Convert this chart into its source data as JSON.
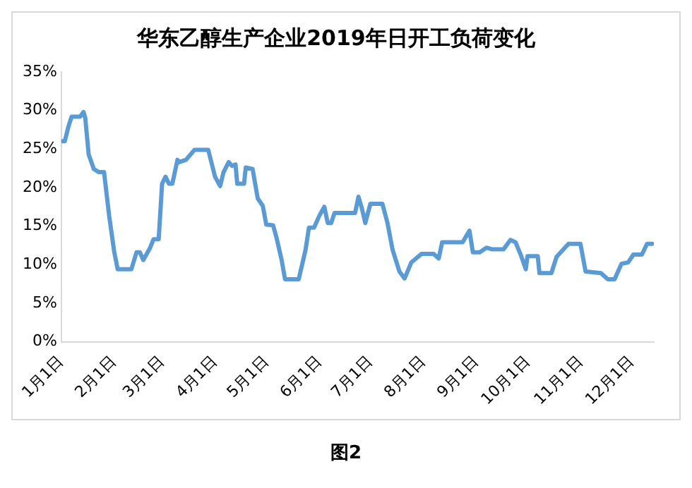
{
  "chart_data": {
    "type": "line",
    "title": "华东乙醇生产企业2019年日开工负荷变化",
    "annotations": [
      "图2"
    ],
    "x": [
      "2019-01-01",
      "2019-01-03",
      "2019-01-05",
      "2019-01-07",
      "2019-01-12",
      "2019-01-14",
      "2019-01-15",
      "2019-01-17",
      "2019-01-20",
      "2019-01-23",
      "2019-01-26",
      "2019-01-29",
      "2019-02-01",
      "2019-02-03",
      "2019-02-11",
      "2019-02-14",
      "2019-02-16",
      "2019-02-18",
      "2019-02-22",
      "2019-02-24",
      "2019-02-27",
      "2019-03-01",
      "2019-03-03",
      "2019-03-05",
      "2019-03-07",
      "2019-03-10",
      "2019-03-11",
      "2019-03-15",
      "2019-03-20",
      "2019-03-28",
      "2019-04-01",
      "2019-04-04",
      "2019-04-06",
      "2019-04-09",
      "2019-04-11",
      "2019-04-13",
      "2019-04-14",
      "2019-04-18",
      "2019-04-19",
      "2019-04-23",
      "2019-04-26",
      "2019-04-29",
      "2019-05-01",
      "2019-05-05",
      "2019-05-07",
      "2019-05-10",
      "2019-05-12",
      "2019-05-20",
      "2019-05-24",
      "2019-05-26",
      "2019-05-29",
      "2019-06-01",
      "2019-06-04",
      "2019-06-06",
      "2019-06-08",
      "2019-06-10",
      "2019-06-22",
      "2019-06-24",
      "2019-06-26",
      "2019-06-28",
      "2019-07-01",
      "2019-07-08",
      "2019-07-11",
      "2019-07-14",
      "2019-07-18",
      "2019-07-21",
      "2019-07-25",
      "2019-07-31",
      "2019-08-07",
      "2019-08-10",
      "2019-08-12",
      "2019-08-24",
      "2019-08-28",
      "2019-08-30",
      "2019-09-03",
      "2019-09-07",
      "2019-09-10",
      "2019-09-17",
      "2019-09-21",
      "2019-09-24",
      "2019-09-27",
      "2019-09-30",
      "2019-10-01",
      "2019-10-07",
      "2019-10-08",
      "2019-10-15",
      "2019-10-18",
      "2019-10-25",
      "2019-11-01",
      "2019-11-04",
      "2019-11-13",
      "2019-11-17",
      "2019-11-21",
      "2019-11-25",
      "2019-11-29",
      "2019-12-02",
      "2019-12-07",
      "2019-12-10",
      "2019-12-13"
    ],
    "series": [
      {
        "color": "#5b9bd5",
        "values": [
          26,
          26,
          27.8,
          29.2,
          29.2,
          29.8,
          29,
          24.3,
          22.4,
          22,
          22,
          16.3,
          11.6,
          9.4,
          9.4,
          11.6,
          11.6,
          10.6,
          12.2,
          13.3,
          13.3,
          20.5,
          21.4,
          20.5,
          20.5,
          23.6,
          23.3,
          23.6,
          24.9,
          24.9,
          21.4,
          20.2,
          22,
          23.3,
          22.8,
          23,
          20.5,
          20.5,
          22.6,
          22.4,
          18.6,
          17.6,
          15.2,
          15.1,
          13.5,
          10.6,
          8.1,
          8.1,
          11.9,
          14.8,
          14.8,
          16.3,
          17.5,
          15.4,
          15.4,
          16.7,
          16.7,
          18.8,
          17.3,
          15.4,
          17.9,
          17.9,
          15.4,
          11.9,
          9.1,
          8.2,
          10.3,
          11.4,
          11.4,
          10.8,
          12.9,
          12.9,
          14.4,
          11.6,
          11.6,
          12.2,
          12,
          12,
          13.2,
          12.9,
          11.3,
          9.4,
          11.1,
          11.1,
          8.9,
          8.9,
          11,
          12.7,
          12.7,
          9.1,
          8.9,
          8.1,
          8.1,
          10.1,
          10.3,
          11.3,
          11.3,
          12.7,
          12.7
        ]
      }
    ],
    "xlim": [
      "2019-01-01",
      "2019-12-14"
    ],
    "xticks": [
      {
        "value": "2019-01-01",
        "label": "1月1日"
      },
      {
        "value": "2019-02-01",
        "label": "2月1日"
      },
      {
        "value": "2019-03-01",
        "label": "3月1日"
      },
      {
        "value": "2019-04-01",
        "label": "4月1日"
      },
      {
        "value": "2019-05-01",
        "label": "5月1日"
      },
      {
        "value": "2019-06-01",
        "label": "6月1日"
      },
      {
        "value": "2019-07-01",
        "label": "7月1日"
      },
      {
        "value": "2019-08-01",
        "label": "8月1日"
      },
      {
        "value": "2019-09-01",
        "label": "9月1日"
      },
      {
        "value": "2019-10-01",
        "label": "10月1日"
      },
      {
        "value": "2019-11-01",
        "label": "11月1日"
      },
      {
        "value": "2019-12-01",
        "label": "12月1日"
      }
    ],
    "ylim": [
      0,
      35
    ],
    "yticks": [
      {
        "value": 0,
        "label": "0%"
      },
      {
        "value": 5,
        "label": "5%"
      },
      {
        "value": 10,
        "label": "10%"
      },
      {
        "value": 15,
        "label": "15%"
      },
      {
        "value": 20,
        "label": "20%"
      },
      {
        "value": 25,
        "label": "25%"
      },
      {
        "value": 30,
        "label": "30%"
      },
      {
        "value": 35,
        "label": "35%"
      }
    ],
    "grid": false,
    "legend": false,
    "marker": "none",
    "line_style": "solid"
  }
}
